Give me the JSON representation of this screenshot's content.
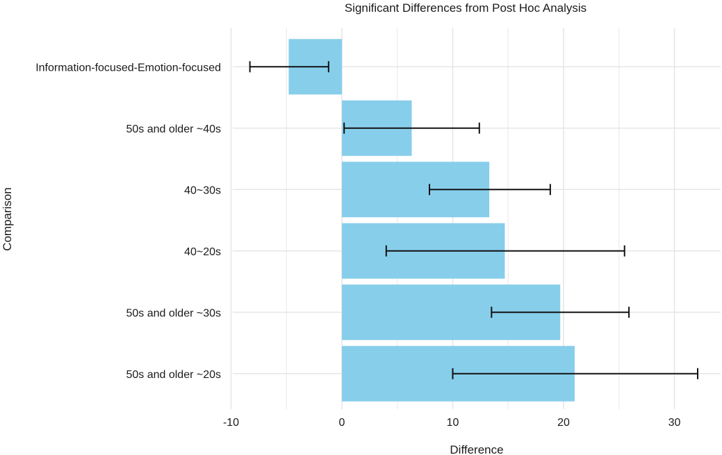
{
  "chart_data": {
    "type": "bar",
    "orientation": "horizontal",
    "title": "Significant Differences from Post Hoc Analysis",
    "xlabel": "Difference",
    "ylabel": "Comparison",
    "xlim": [
      -10.5,
      34
    ],
    "xticks": [
      -10,
      0,
      10,
      20,
      30
    ],
    "xtick_labels": [
      "-10",
      "0",
      "10",
      "20",
      "30"
    ],
    "grid": true,
    "legend": "none",
    "bar_color": "#87CEEB",
    "error_color": "#111111",
    "categories": [
      "Information-focused-Emotion-focused",
      "50s and older ~40s",
      "40~30s",
      "40~20s",
      "50s and older ~30s",
      "50s and older ~20s"
    ],
    "values": [
      -4.8,
      6.3,
      13.3,
      14.7,
      19.7,
      21.0
    ],
    "error_low": [
      -8.3,
      0.2,
      7.9,
      4.0,
      13.5,
      10.0
    ],
    "error_high": [
      -1.2,
      12.4,
      18.8,
      25.5,
      25.9,
      32.1
    ]
  }
}
